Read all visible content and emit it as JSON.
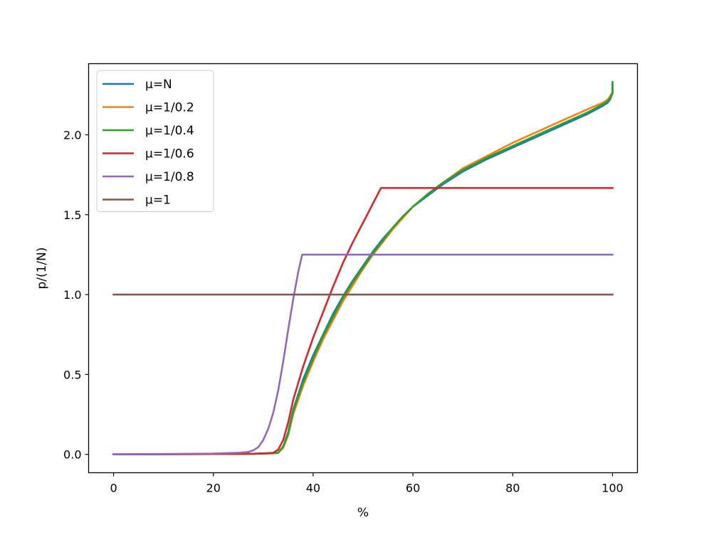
{
  "chart_data": {
    "type": "line",
    "title": "",
    "xlabel": "%",
    "ylabel": "p/(1/N)",
    "xlim": [
      -5,
      105
    ],
    "ylim": [
      -0.115,
      2.445
    ],
    "xticks": [
      0,
      20,
      40,
      60,
      80,
      100
    ],
    "xtick_labels": [
      "0",
      "20",
      "40",
      "60",
      "80",
      "100"
    ],
    "yticks": [
      0.0,
      0.5,
      1.0,
      1.5,
      2.0
    ],
    "ytick_labels": [
      "0.0",
      "0.5",
      "1.0",
      "1.5",
      "2.0"
    ],
    "grid": false,
    "legend_position": "upper-left",
    "series": [
      {
        "name": "μ=N",
        "color": "#1f77b4",
        "x": [
          0,
          10,
          20,
          28,
          30,
          32,
          33,
          34,
          35,
          36,
          38,
          40,
          42,
          44,
          46,
          48,
          50,
          52,
          54,
          56,
          58,
          60,
          63,
          66,
          70,
          75,
          80,
          85,
          90,
          95,
          98,
          99,
          99.5,
          100,
          100
        ],
        "y": [
          0,
          0.001,
          0.002,
          0.004,
          0.005,
          0.007,
          0.01,
          0.05,
          0.14,
          0.28,
          0.47,
          0.62,
          0.75,
          0.88,
          0.99,
          1.09,
          1.18,
          1.27,
          1.35,
          1.42,
          1.49,
          1.55,
          1.62,
          1.69,
          1.77,
          1.85,
          1.92,
          1.99,
          2.06,
          2.13,
          2.18,
          2.2,
          2.22,
          2.26,
          2.32
        ]
      },
      {
        "name": "μ=1/0.2",
        "color": "#ff7f0e",
        "x": [
          0,
          10,
          20,
          28,
          30,
          32,
          33,
          34,
          35,
          36,
          38,
          40,
          42,
          44,
          46,
          48,
          50,
          52,
          54,
          56,
          58,
          60,
          63,
          66,
          70,
          75,
          80,
          85,
          90,
          95,
          98,
          99,
          99.5,
          100
        ],
        "y": [
          0,
          0.001,
          0.002,
          0.004,
          0.005,
          0.007,
          0.01,
          0.04,
          0.12,
          0.25,
          0.43,
          0.58,
          0.72,
          0.84,
          0.96,
          1.06,
          1.16,
          1.25,
          1.33,
          1.41,
          1.48,
          1.55,
          1.63,
          1.7,
          1.79,
          1.87,
          1.95,
          2.02,
          2.09,
          2.16,
          2.2,
          2.22,
          2.24,
          2.27
        ]
      },
      {
        "name": "μ=1/0.4",
        "color": "#2ca02c",
        "x": [
          0,
          10,
          20,
          28,
          30,
          32,
          33,
          34,
          35,
          36,
          38,
          40,
          42,
          44,
          46,
          48,
          50,
          52,
          54,
          56,
          58,
          60,
          63,
          66,
          70,
          75,
          80,
          85,
          90,
          95,
          98,
          99,
          99.5,
          100,
          100
        ],
        "y": [
          0,
          0.001,
          0.002,
          0.004,
          0.005,
          0.007,
          0.01,
          0.05,
          0.13,
          0.27,
          0.45,
          0.6,
          0.74,
          0.86,
          0.98,
          1.08,
          1.17,
          1.26,
          1.34,
          1.42,
          1.49,
          1.55,
          1.63,
          1.7,
          1.78,
          1.86,
          1.93,
          2.0,
          2.07,
          2.14,
          2.19,
          2.21,
          2.23,
          2.26,
          2.33
        ]
      },
      {
        "name": "μ=1/0.6",
        "color": "#d62728",
        "x": [
          0,
          10,
          20,
          28,
          30,
          32,
          33,
          34,
          35,
          36,
          38,
          40,
          42,
          44,
          46,
          48,
          50,
          52,
          53.6,
          60,
          70,
          80,
          90,
          100
        ],
        "y": [
          0,
          0.001,
          0.002,
          0.004,
          0.006,
          0.01,
          0.03,
          0.09,
          0.2,
          0.34,
          0.55,
          0.73,
          0.89,
          1.05,
          1.2,
          1.33,
          1.45,
          1.57,
          1.667,
          1.667,
          1.667,
          1.667,
          1.667,
          1.667
        ]
      },
      {
        "name": "μ=1/0.8",
        "color": "#9467bd",
        "x": [
          0,
          10,
          20,
          25,
          27,
          28,
          29,
          30,
          31,
          32,
          33,
          34,
          35,
          36,
          37,
          37.8,
          45,
          60,
          80,
          100
        ],
        "y": [
          0,
          0.002,
          0.005,
          0.01,
          0.015,
          0.025,
          0.045,
          0.09,
          0.16,
          0.26,
          0.4,
          0.58,
          0.78,
          0.97,
          1.14,
          1.25,
          1.25,
          1.25,
          1.25,
          1.25
        ]
      },
      {
        "name": "μ=1",
        "color": "#8c564b",
        "x": [
          0,
          100
        ],
        "y": [
          1.0,
          1.0
        ]
      }
    ]
  }
}
